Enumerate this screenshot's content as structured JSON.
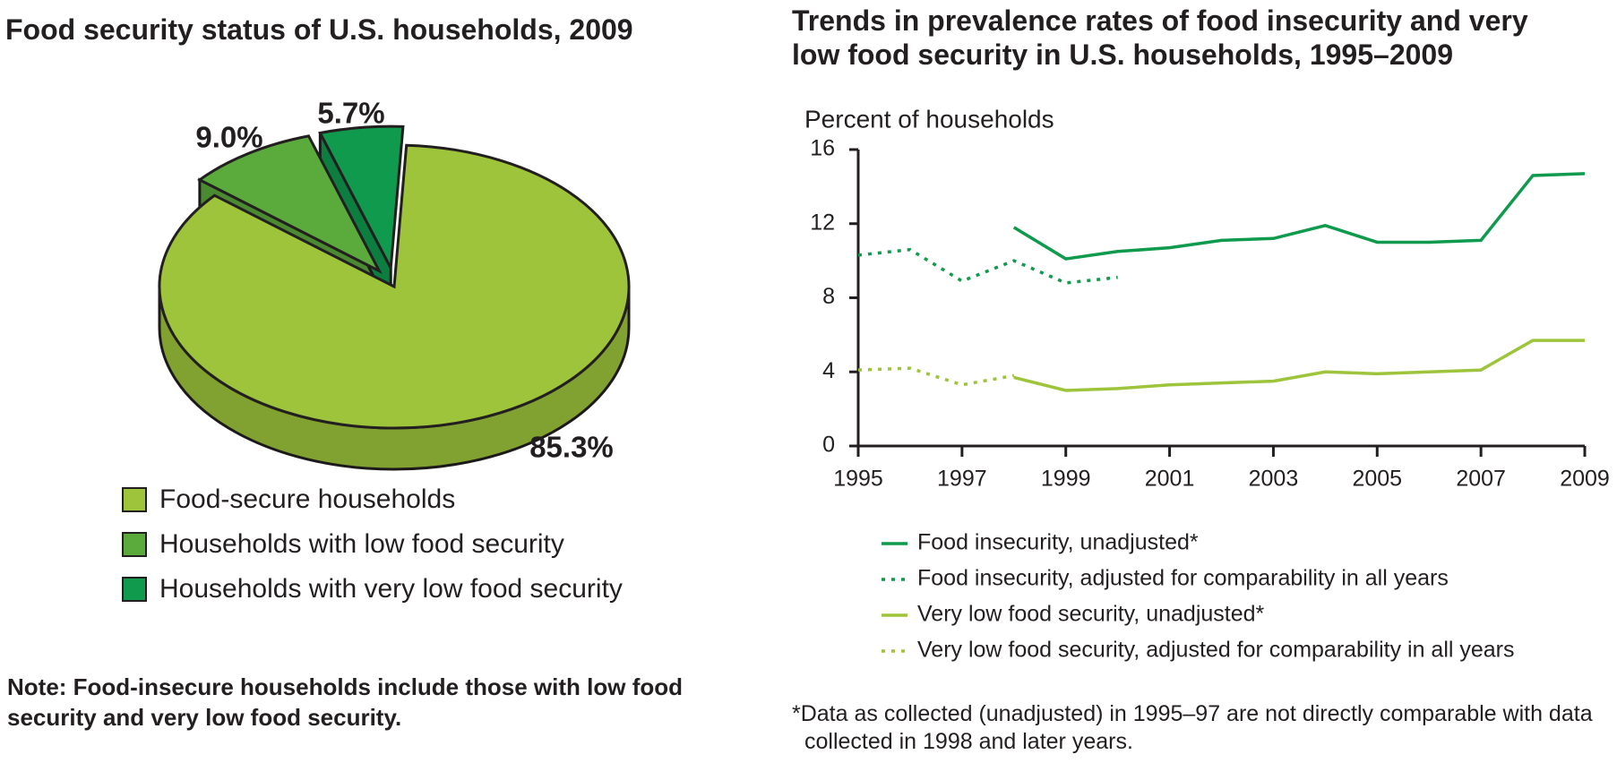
{
  "chart_data": [
    {
      "type": "pie",
      "title": "Food security status of U.S. households, 2009",
      "categories": [
        "Food-secure households",
        "Households with low food security",
        "Households with very low food security"
      ],
      "values": [
        85.3,
        9.0,
        5.7
      ],
      "value_labels": [
        "85.3%",
        "9.0%",
        "5.7%"
      ],
      "colors": [
        "#9dc43a",
        "#5aaa3c",
        "#0f9a4e"
      ],
      "note": "Note: Food-insecure households include those with low food security and very low food security."
    },
    {
      "type": "line",
      "title": "Trends in prevalence rates of food insecurity and very low food security in U.S. households, 1995–2009",
      "y_label": "Percent of households",
      "x": [
        1995,
        1996,
        1997,
        1998,
        1999,
        2000,
        2001,
        2002,
        2003,
        2004,
        2005,
        2006,
        2007,
        2008,
        2009
      ],
      "series": [
        {
          "name": "Food insecurity, unadjusted*",
          "color": "#0f9a4e",
          "style": "solid",
          "values": [
            null,
            null,
            null,
            11.8,
            10.1,
            10.5,
            10.7,
            11.1,
            11.2,
            11.9,
            11.0,
            11.0,
            11.1,
            14.6,
            14.7
          ]
        },
        {
          "name": "Food insecurity, adjusted for comparability in all years",
          "color": "#0f9a4e",
          "style": "dotted",
          "values": [
            10.3,
            10.6,
            8.9,
            10.0,
            8.8,
            9.1,
            null,
            null,
            null,
            null,
            null,
            null,
            null,
            null,
            null
          ]
        },
        {
          "name": "Very low food security, unadjusted*",
          "color": "#9dc43a",
          "style": "solid",
          "values": [
            null,
            null,
            null,
            3.7,
            3.0,
            3.1,
            3.3,
            3.4,
            3.5,
            4.0,
            3.9,
            4.0,
            4.1,
            5.7,
            5.7
          ]
        },
        {
          "name": "Very low food security, adjusted for comparability in all years",
          "color": "#9dc43a",
          "style": "dotted",
          "values": [
            4.1,
            4.2,
            3.3,
            3.8,
            null,
            null,
            null,
            null,
            null,
            null,
            null,
            null,
            null,
            null,
            null
          ]
        }
      ],
      "xlim": [
        1995,
        2009
      ],
      "xticks": [
        1995,
        1997,
        1999,
        2001,
        2003,
        2005,
        2007,
        2009
      ],
      "ylim": [
        0,
        16
      ],
      "yticks": [
        0,
        4,
        8,
        12,
        16
      ],
      "grid": false,
      "footnote": "*Data as collected (unadjusted) in 1995–97 are not directly comparable with data collected in 1998 and later years."
    }
  ]
}
